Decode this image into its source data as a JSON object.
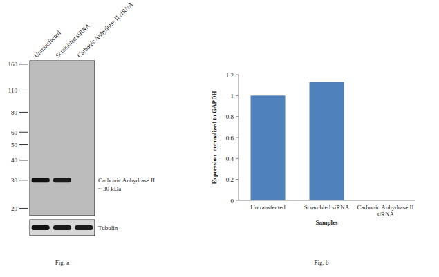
{
  "blot": {
    "caption": "Fig. a",
    "lanes": [
      "Untransfected",
      "Scrambled siRNA",
      "Carbonic Anhydrase II siRNA"
    ],
    "markers": {
      "ticks": [
        160,
        110,
        80,
        60,
        50,
        40,
        30,
        20
      ],
      "ylim": [
        18,
        168
      ],
      "log": true
    },
    "bands": [
      {
        "label": [
          "Carbonic Anhydrase II",
          "~ 30 kDa"
        ],
        "kda": 30,
        "intensity": [
          1,
          0.95,
          0
        ]
      }
    ],
    "loading_control": {
      "label": "Tubulin",
      "intensity": [
        1,
        0.95,
        0.95
      ]
    }
  },
  "chart_data": {
    "type": "bar",
    "caption": "Fig. b",
    "x_label": "Samples",
    "y_label": "Expression  normalized to GAPDH",
    "categories": [
      "Untransfected",
      "Scrambled siRNA",
      "Carbonic Anhydrase II siRNA"
    ],
    "values": [
      1,
      1.13,
      0
    ],
    "color": "#4f81bd",
    "ylim": [
      0,
      1.2
    ],
    "yticks": [
      0,
      0.2,
      0.4,
      0.6,
      0.8,
      1,
      1.2
    ],
    "grid": false
  }
}
